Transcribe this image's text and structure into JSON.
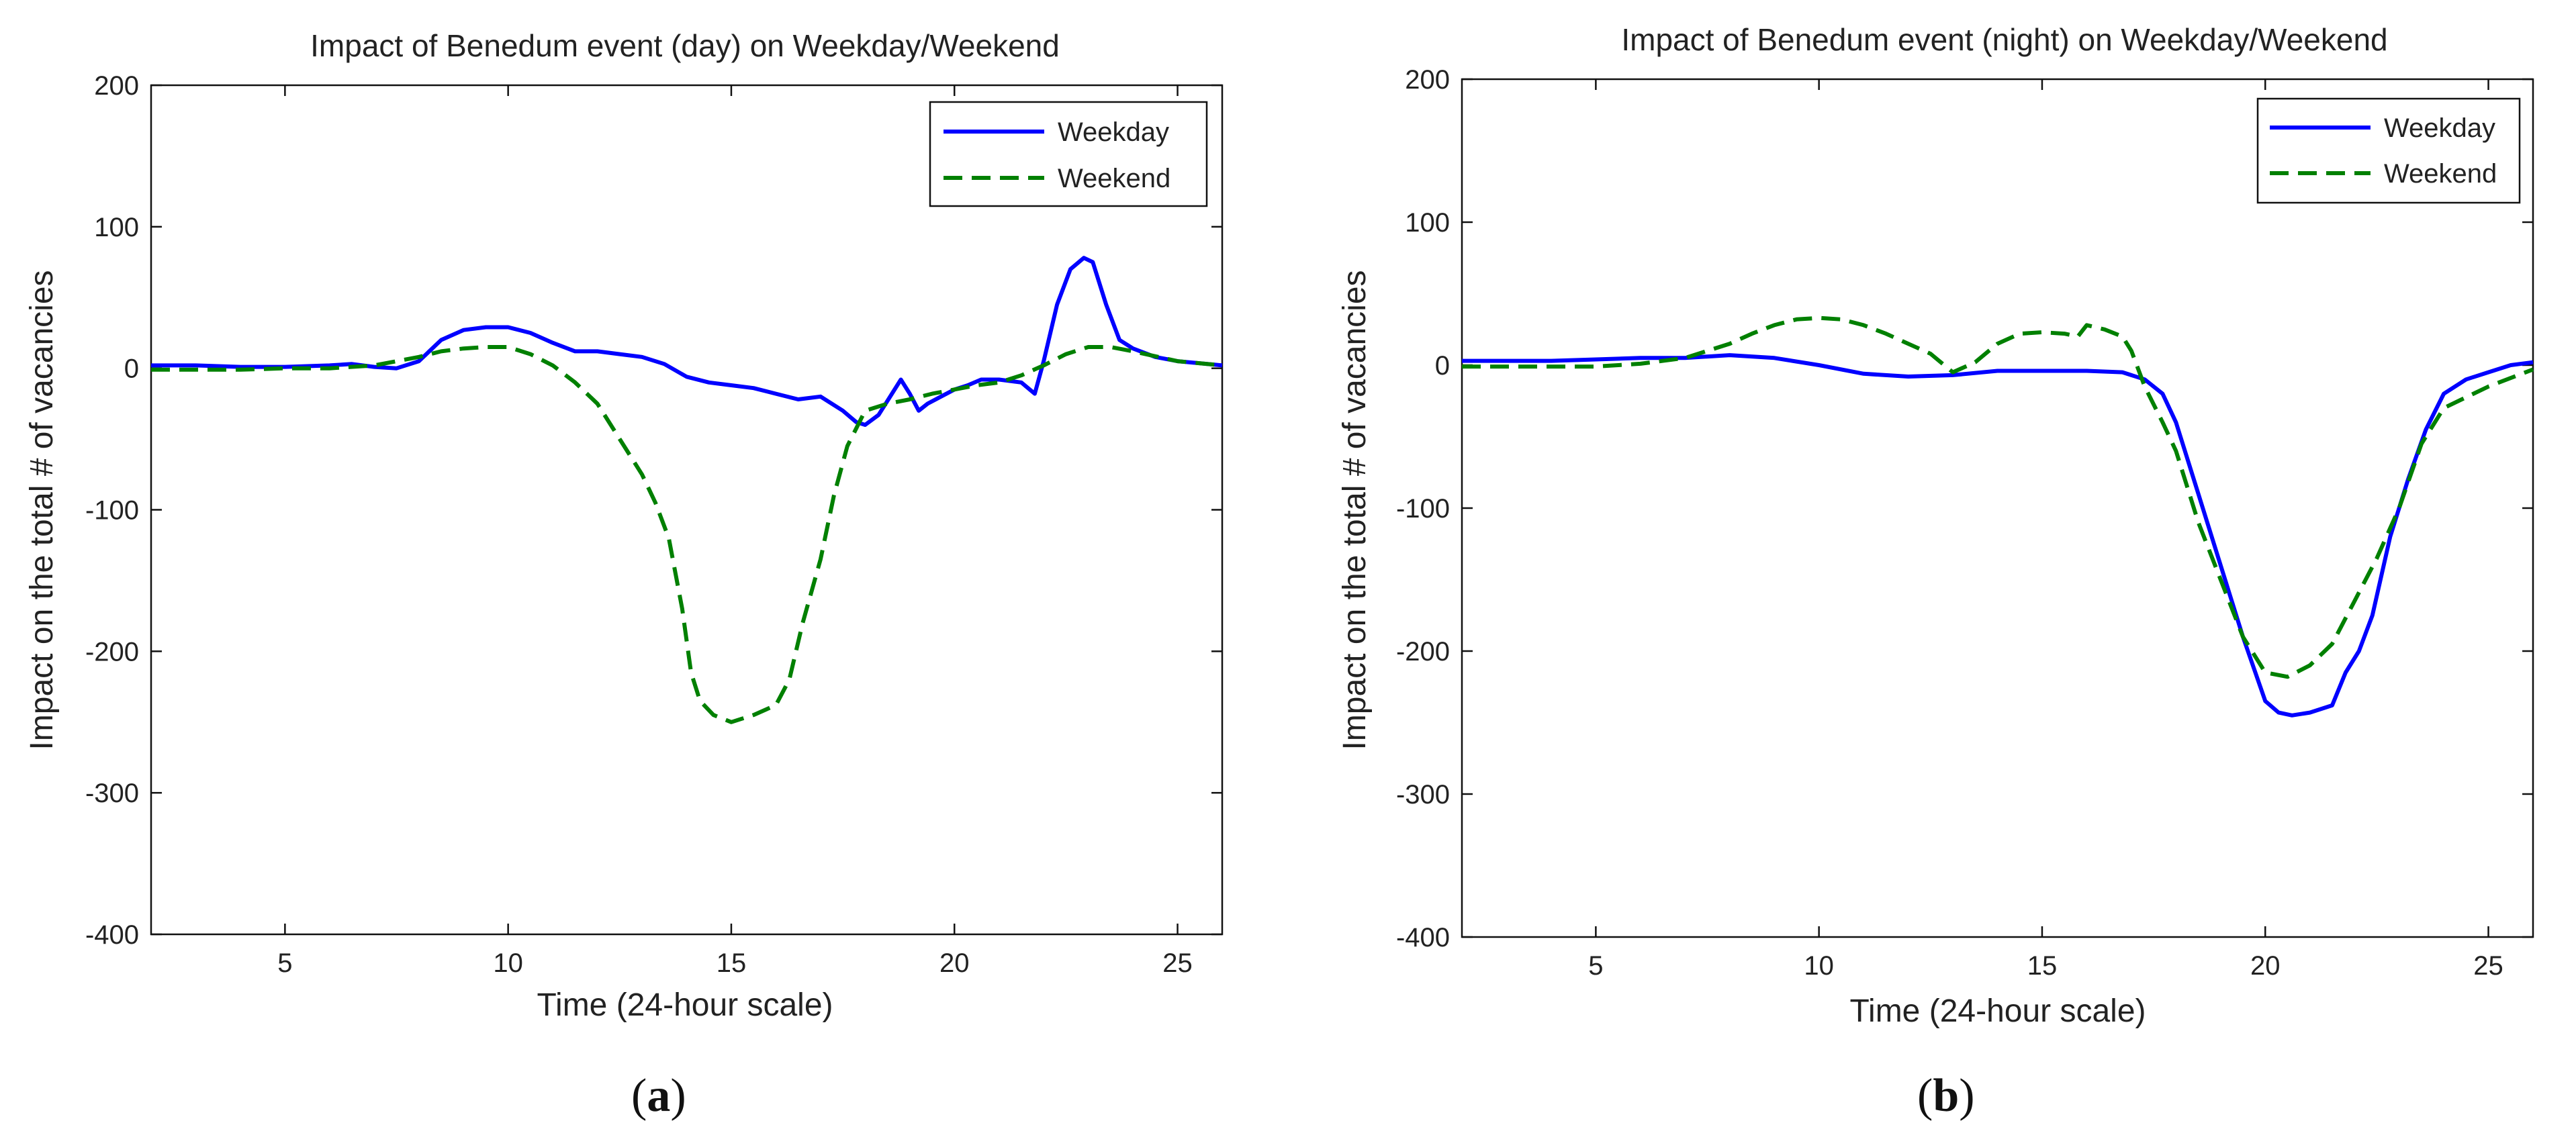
{
  "chart_data": [
    {
      "type": "line",
      "panel_label": "a",
      "title": "Impact of Benedum event (day) on Weekday/Weekend",
      "xlabel": "Time (24-hour scale)",
      "ylabel": "Impact on the total # of vacancies",
      "xlim": [
        2,
        26
      ],
      "ylim": [
        -400,
        200
      ],
      "xticks": [
        5,
        10,
        15,
        20,
        25
      ],
      "yticks": [
        -400,
        -300,
        -200,
        -100,
        0,
        100,
        200
      ],
      "grid": false,
      "legend_position": "top-right",
      "series": [
        {
          "name": "Weekday",
          "color": "#0000ff",
          "style": "solid",
          "x": [
            2,
            3,
            4,
            5,
            6,
            6.5,
            7,
            7.5,
            8,
            8.5,
            9,
            9.5,
            10,
            10.5,
            11,
            11.5,
            12,
            12.5,
            13,
            13.5,
            14,
            14.5,
            15,
            15.5,
            16,
            16.5,
            17,
            17.5,
            17.8,
            18,
            18.3,
            18.6,
            18.8,
            19,
            19.2,
            19.4,
            19.7,
            20,
            20.3,
            20.6,
            21,
            21.5,
            21.8,
            22,
            22.3,
            22.6,
            22.9,
            23.1,
            23.4,
            23.7,
            24,
            24.5,
            25,
            26
          ],
          "values": [
            2,
            2,
            1,
            1,
            2,
            3,
            1,
            0,
            5,
            20,
            27,
            29,
            29,
            25,
            18,
            12,
            12,
            10,
            8,
            3,
            -6,
            -10,
            -12,
            -14,
            -18,
            -22,
            -20,
            -30,
            -38,
            -40,
            -33,
            -18,
            -8,
            -18,
            -30,
            -25,
            -20,
            -15,
            -12,
            -8,
            -8,
            -10,
            -18,
            5,
            45,
            70,
            78,
            75,
            45,
            20,
            14,
            8,
            5,
            2
          ]
        },
        {
          "name": "Weekend",
          "color": "#008000",
          "style": "dashed",
          "x": [
            2,
            3,
            4,
            5,
            6,
            7,
            7.5,
            8,
            8.5,
            9,
            9.5,
            10,
            10.5,
            11,
            11.5,
            12,
            12.5,
            13,
            13.3,
            13.6,
            13.9,
            14.1,
            14.3,
            14.6,
            15,
            15.5,
            16,
            16.3,
            16.6,
            17,
            17.3,
            17.6,
            18,
            18.5,
            19,
            19.5,
            20,
            20.5,
            21,
            21.5,
            22,
            22.5,
            23,
            23.5,
            24,
            25,
            26
          ],
          "values": [
            -1,
            -1,
            -1,
            0,
            0,
            2,
            5,
            8,
            12,
            14,
            15,
            15,
            10,
            2,
            -10,
            -25,
            -50,
            -75,
            -95,
            -120,
            -170,
            -215,
            -235,
            -245,
            -250,
            -245,
            -238,
            -220,
            -180,
            -135,
            -90,
            -55,
            -30,
            -25,
            -22,
            -18,
            -15,
            -12,
            -10,
            -5,
            2,
            10,
            15,
            15,
            12,
            5,
            2
          ]
        }
      ]
    },
    {
      "type": "line",
      "panel_label": "b",
      "title": "Impact of Benedum event (night) on Weekday/Weekend",
      "xlabel": "Time (24-hour scale)",
      "ylabel": "Impact on the total # of vacancies",
      "xlim": [
        2,
        26
      ],
      "ylim": [
        -400,
        200
      ],
      "xticks": [
        5,
        10,
        15,
        20,
        25
      ],
      "yticks": [
        -400,
        -300,
        -200,
        -100,
        0,
        100,
        200
      ],
      "grid": false,
      "legend_position": "top-right",
      "series": [
        {
          "name": "Weekday",
          "color": "#0000ff",
          "style": "solid",
          "x": [
            2,
            3,
            4,
            5,
            6,
            7,
            8,
            9,
            10,
            11,
            12,
            13,
            14,
            15,
            16,
            16.8,
            17.3,
            17.7,
            18,
            18.5,
            19,
            19.5,
            20,
            20.3,
            20.6,
            21,
            21.5,
            21.8,
            22.1,
            22.4,
            22.8,
            23.2,
            23.6,
            24,
            24.5,
            25,
            25.5,
            26
          ],
          "values": [
            3,
            3,
            3,
            4,
            5,
            5,
            7,
            5,
            0,
            -6,
            -8,
            -7,
            -4,
            -4,
            -4,
            -5,
            -10,
            -20,
            -40,
            -90,
            -140,
            -190,
            -235,
            -243,
            -245,
            -243,
            -238,
            -215,
            -200,
            -175,
            -120,
            -80,
            -45,
            -20,
            -10,
            -5,
            0,
            2
          ]
        },
        {
          "name": "Weekend",
          "color": "#008000",
          "style": "dashed",
          "x": [
            2,
            3,
            4,
            5,
            6,
            7,
            8,
            8.5,
            9,
            9.5,
            10,
            10.5,
            11,
            11.5,
            12,
            12.5,
            13,
            13.5,
            14,
            14.5,
            15,
            15.5,
            15.8,
            16,
            16.4,
            16.8,
            17,
            17.3,
            17.7,
            18,
            18.5,
            19,
            19.5,
            20,
            20.5,
            21,
            21.5,
            22,
            22.5,
            23,
            23.5,
            24,
            25,
            26
          ],
          "values": [
            -1,
            -1,
            -1,
            -1,
            1,
            5,
            15,
            22,
            28,
            32,
            33,
            32,
            28,
            22,
            15,
            8,
            -5,
            2,
            15,
            22,
            23,
            22,
            20,
            28,
            25,
            20,
            10,
            -15,
            -40,
            -60,
            -110,
            -150,
            -190,
            -215,
            -218,
            -210,
            -195,
            -165,
            -135,
            -100,
            -55,
            -30,
            -15,
            -3
          ]
        }
      ]
    }
  ]
}
